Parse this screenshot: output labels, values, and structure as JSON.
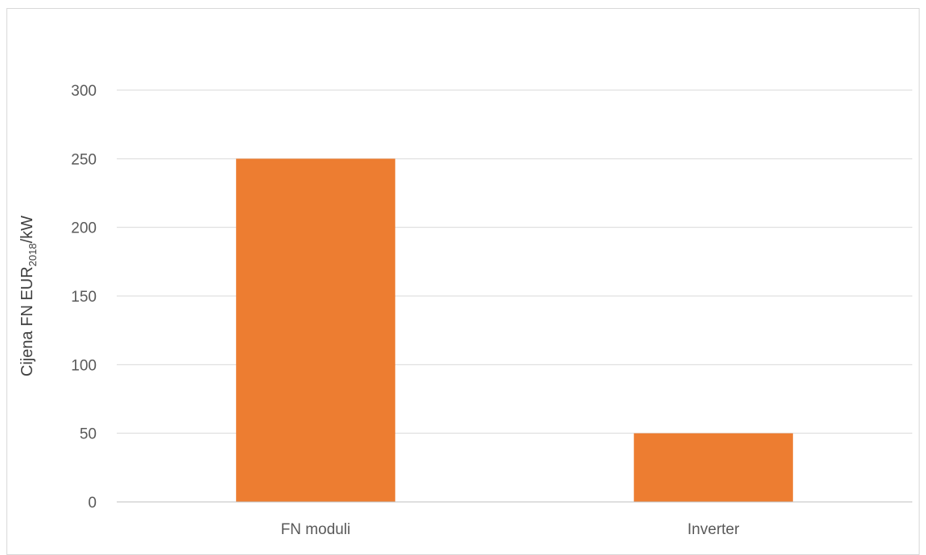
{
  "chart_data": {
    "type": "bar",
    "title": "",
    "xlabel": "",
    "ylabel": {
      "main": "Cijena FN EUR",
      "subscript": "2018",
      "suffix": "/kW"
    },
    "categories": [
      "FN moduli",
      "Inverter"
    ],
    "values": [
      250,
      50
    ],
    "ylim": [
      0,
      300
    ],
    "yticks": [
      0,
      50,
      100,
      150,
      200,
      250,
      300
    ],
    "grid": true,
    "legend": "none",
    "colors": {
      "bar": "#ED7D31",
      "grid": "#d9d9d9",
      "axis": "#bfbfbf"
    }
  }
}
